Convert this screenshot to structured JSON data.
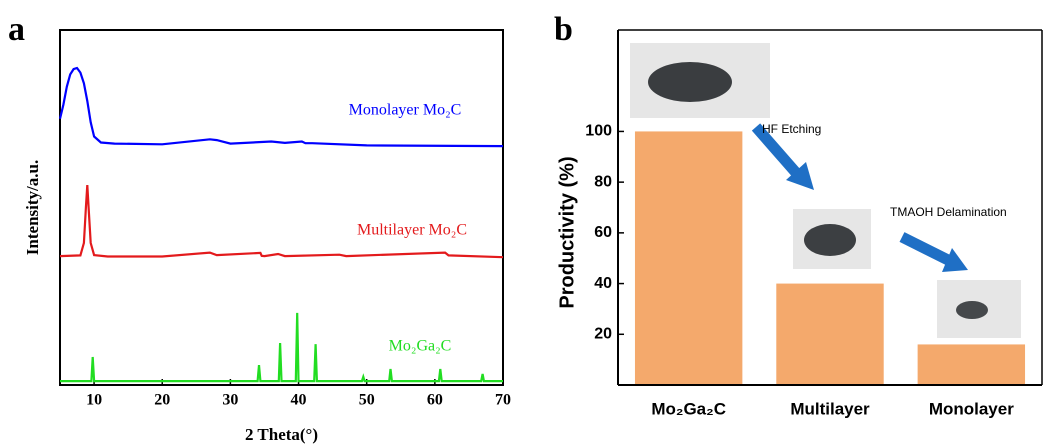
{
  "chart_data": [
    {
      "type": "line",
      "panel": "a",
      "xlabel": "2 Theta(°)",
      "ylabel": "Intensity/a.u.",
      "xlim": [
        5,
        70
      ],
      "xticks": [
        10,
        20,
        30,
        40,
        50,
        60,
        70
      ],
      "ylim": [
        0,
        100
      ],
      "series": [
        {
          "name": "Monolayer Mo₂C",
          "color": "#0000ff",
          "x": [
            5,
            5.5,
            6,
            6.5,
            7,
            7.5,
            8,
            8.5,
            9,
            9.5,
            10,
            11,
            13,
            20,
            27,
            28,
            30,
            36,
            38,
            40.5,
            41,
            42,
            50,
            70
          ],
          "values": [
            75,
            79,
            84,
            87.5,
            89,
            89.3,
            88,
            85,
            80,
            74,
            70,
            68.3,
            68,
            67.8,
            69.2,
            69,
            68,
            68.6,
            68.2,
            68.6,
            68.1,
            68.1,
            67.5,
            67.3
          ]
        },
        {
          "name": "Multilayer Mo₂C",
          "color": "#e31a1c",
          "x": [
            5,
            8,
            8.5,
            8.8,
            9,
            9.2,
            9.5,
            10,
            12,
            20,
            27,
            28,
            34.4,
            34.6,
            35,
            37,
            38,
            46,
            47,
            61.5,
            62,
            70
          ],
          "values": [
            36.3,
            36.5,
            40,
            50,
            56.3,
            50,
            40,
            36.6,
            36.2,
            36.2,
            37.3,
            36.6,
            37.2,
            36.4,
            36.3,
            36.9,
            36.3,
            36.7,
            36.3,
            37.3,
            36.5,
            36
          ]
        },
        {
          "name": "Mo₂Ga₂C",
          "color": "#22dd22",
          "x": [
            5,
            9.6,
            9.8,
            10,
            20,
            34,
            34.2,
            34.4,
            37.1,
            37.3,
            37.5,
            39.6,
            39.8,
            40,
            42.3,
            42.5,
            42.7,
            49.3,
            49.5,
            49.7,
            53.3,
            53.5,
            53.7,
            60.6,
            60.8,
            61,
            66.8,
            67,
            67.2,
            70
          ],
          "values": [
            1.1,
            1.1,
            7.9,
            1.1,
            1.1,
            1.1,
            5.6,
            1.1,
            1.1,
            11.8,
            1.1,
            1.1,
            20.3,
            1.1,
            1.1,
            11.5,
            1.1,
            1.1,
            2.3,
            1.1,
            1.1,
            4.5,
            1.1,
            1.1,
            4.5,
            1.1,
            1.1,
            3.1,
            1.1,
            1.1
          ]
        }
      ]
    },
    {
      "type": "bar",
      "panel": "b",
      "ylabel": "Productivity (%)",
      "categories": [
        "Mo₂Ga₂C",
        "Multilayer",
        "Monolayer"
      ],
      "values": [
        100,
        40,
        16
      ],
      "color": "#f4a96c",
      "ylim": [
        0,
        140
      ],
      "yticks": [
        20,
        40,
        60,
        80,
        100
      ],
      "annotations": [
        "HF Etching",
        "TMAOH Delamination"
      ]
    }
  ]
}
